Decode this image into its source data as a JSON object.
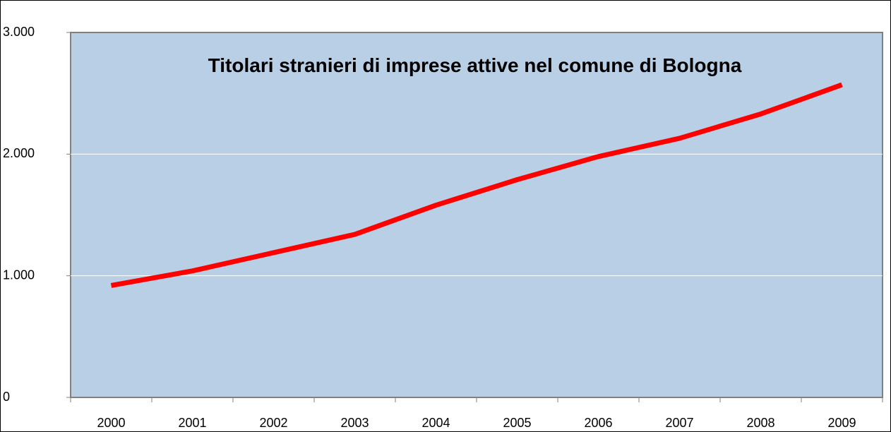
{
  "chart_data": {
    "type": "line",
    "title": "Titolari stranieri di imprese attive nel comune di Bologna",
    "categories": [
      "2000",
      "2001",
      "2002",
      "2003",
      "2004",
      "2005",
      "2006",
      "2007",
      "2008",
      "2009"
    ],
    "series": [
      {
        "color": "#ff0000",
        "values": [
          920,
          1040,
          1190,
          1340,
          1580,
          1790,
          1980,
          2130,
          2330,
          2570
        ]
      }
    ],
    "ylim": [
      0,
      3000
    ],
    "yticks": [
      0,
      {
        "value": 1000,
        "label": "1.000"
      },
      {
        "value": 2000,
        "label": "2.000"
      },
      {
        "value": 3000,
        "label": "3.000"
      }
    ],
    "grid": true
  }
}
